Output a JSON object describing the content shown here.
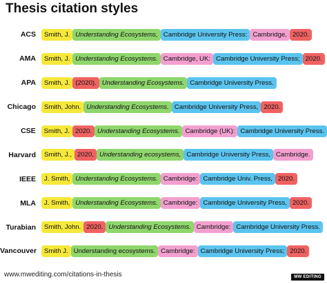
{
  "title": "Thesis citation styles",
  "colors": {
    "author": "#f6e83a",
    "title": "#8fd66c",
    "publisher": "#5bc4ee",
    "place": "#f2a0d0",
    "year": "#f06262"
  },
  "styles": [
    {
      "name": "ACS",
      "parts": [
        {
          "type": "author",
          "text": "Smith, J."
        },
        {
          "type": "title",
          "text": "Understanding Ecosystems,"
        },
        {
          "type": "publisher",
          "text": "Cambridge University Press:"
        },
        {
          "type": "place",
          "text": "Cambridge,"
        },
        {
          "type": "year",
          "text": "2020."
        }
      ]
    },
    {
      "name": "AMA",
      "parts": [
        {
          "type": "author",
          "text": "Smith, J."
        },
        {
          "type": "title",
          "text": "Understanding Ecosystems."
        },
        {
          "type": "place",
          "text": "Cambridge, UK:"
        },
        {
          "type": "publisher",
          "text": "Cambridge University Press;"
        },
        {
          "type": "year",
          "text": "2020."
        }
      ]
    },
    {
      "name": "APA",
      "parts": [
        {
          "type": "author",
          "text": "Smith, J."
        },
        {
          "type": "year",
          "text": "(2020)."
        },
        {
          "type": "title",
          "text": "Understanding Ecosystems."
        },
        {
          "type": "publisher",
          "text": "Cambridge University Press."
        }
      ]
    },
    {
      "name": "Chicago",
      "parts": [
        {
          "type": "author",
          "text": "Smith, John."
        },
        {
          "type": "title",
          "text": "Understanding Ecosystems."
        },
        {
          "type": "publisher",
          "text": "Cambridge University Press,"
        },
        {
          "type": "year",
          "text": "2020."
        }
      ]
    },
    {
      "name": "CSE",
      "parts": [
        {
          "type": "author",
          "text": "Smith, J."
        },
        {
          "type": "year",
          "text": "2020."
        },
        {
          "type": "title",
          "text": "Understanding Ecosystems."
        },
        {
          "type": "place",
          "text": "Cambridge (UK):"
        },
        {
          "type": "publisher",
          "text": "Cambridge University Press."
        }
      ]
    },
    {
      "name": "Harvard",
      "parts": [
        {
          "type": "author",
          "text": "Smith, J.,"
        },
        {
          "type": "year",
          "text": "2020,"
        },
        {
          "type": "title",
          "text": "Understanding ecosystems,"
        },
        {
          "type": "publisher",
          "text": "Cambridge University Press,"
        },
        {
          "type": "place",
          "text": "Cambridge."
        }
      ]
    },
    {
      "name": "IEEE",
      "parts": [
        {
          "type": "author",
          "text": "J. Smith,"
        },
        {
          "type": "title",
          "text": "Understanding Ecosystems."
        },
        {
          "type": "place",
          "text": "Cambridge:"
        },
        {
          "type": "publisher",
          "text": "Cambridge Univ. Press,"
        },
        {
          "type": "year",
          "text": "2020."
        }
      ]
    },
    {
      "name": "MLA",
      "parts": [
        {
          "type": "author",
          "text": "J. Smith,"
        },
        {
          "type": "title",
          "text": "Understanding Ecosystems."
        },
        {
          "type": "place",
          "text": "Cambridge:"
        },
        {
          "type": "publisher",
          "text": "Cambridge University Press,"
        },
        {
          "type": "year",
          "text": "2020."
        }
      ]
    },
    {
      "name": "Turabian",
      "parts": [
        {
          "type": "author",
          "text": "Smith, John."
        },
        {
          "type": "year",
          "text": "2020."
        },
        {
          "type": "title",
          "text": "Understanding Ecosystems."
        },
        {
          "type": "place",
          "text": "Cambridge:"
        },
        {
          "type": "publisher",
          "text": "Cambridge University Press."
        }
      ]
    },
    {
      "name": "Vancouver",
      "parts": [
        {
          "type": "author",
          "text": "Smith J."
        },
        {
          "type": "title-plain",
          "text": "Understanding ecosystems."
        },
        {
          "type": "place",
          "text": "Cambridge:"
        },
        {
          "type": "publisher",
          "text": "Cambridge University Press;"
        },
        {
          "type": "year",
          "text": "2020."
        }
      ]
    }
  ],
  "footer": "www.mwediting.com/citations-in-thesis",
  "badge": "MW EDITING"
}
